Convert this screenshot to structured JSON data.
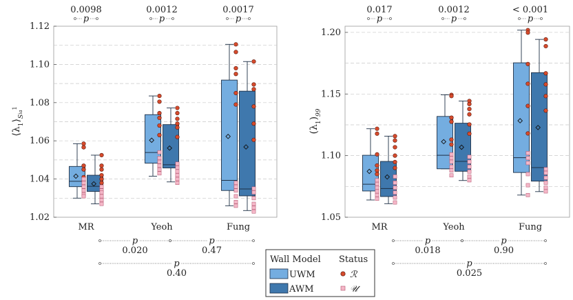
{
  "colors": {
    "uwm": "#74ade0",
    "awm": "#3f78ad",
    "box_stroke": "#1d2f45",
    "red_marker": "#d64b2c",
    "pink_marker": "#f4b7c8",
    "grid": "#c8c8c8"
  },
  "legend": {
    "wall_model_title": "Wall Model",
    "status_title": "Status",
    "uwm_label": "UWM",
    "awm_label": "AWM",
    "status_r": "ℛ",
    "status_u": "𝒰"
  },
  "chart_data": [
    {
      "type": "box",
      "ylabel": "⟨λ₁⟩_{Sᵢₐ¹}",
      "ylabel_main": "⟨λ",
      "ylabel_sub1": "1",
      "ylabel_close": "⟩",
      "ylabel_sub2": "S",
      "ylabel_sub3": "ia",
      "ylabel_sup": "1",
      "ylim": [
        1.02,
        1.12
      ],
      "ticks": [
        1.02,
        1.04,
        1.06,
        1.08,
        1.1,
        1.12
      ],
      "tick_labels": [
        "1.02",
        "1.04",
        "1.06",
        "1.08",
        "1.10",
        "1.12"
      ],
      "categories": [
        "MR",
        "Yeoh",
        "Fung"
      ],
      "series": [
        {
          "name": "UWM",
          "boxes": [
            {
              "whislo": 1.03,
              "q1": 1.036,
              "med": 1.0388,
              "q3": 1.0466,
              "whishi": 1.0585,
              "mean": 1.0415,
              "r_points": [
                1.0585,
                1.0566,
                1.047,
                1.045,
                1.041,
                1.039
              ],
              "u_points": [
                1.04,
                1.038,
                1.036,
                1.034,
                1.032,
                1.031
              ]
            },
            {
              "whislo": 1.0415,
              "q1": 1.0483,
              "med": 1.0539,
              "q3": 1.0737,
              "whishi": 1.0835,
              "mean": 1.0603,
              "r_points": [
                1.0835,
                1.0805,
                1.0745,
                1.072,
                1.068,
                1.063
              ],
              "u_points": [
                1.054,
                1.051,
                1.049,
                1.047,
                1.045,
                1.043
              ]
            },
            {
              "whislo": 1.026,
              "q1": 1.034,
              "med": 1.0393,
              "q3": 1.0918,
              "whishi": 1.1105,
              "mean": 1.0623,
              "r_points": [
                1.1105,
                1.1065,
                1.098,
                1.095,
                1.085,
                1.079
              ],
              "u_points": [
                1.038,
                1.036,
                1.034,
                1.031,
                1.028,
                1.026
              ]
            }
          ]
        },
        {
          "name": "AWM",
          "boxes": [
            {
              "whislo": 1.027,
              "q1": 1.0335,
              "med": 1.0362,
              "q3": 1.042,
              "whishi": 1.0525,
              "mean": 1.0375,
              "r_points": [
                1.0525,
                1.047,
                1.045,
                1.042,
                1.04,
                1.038
              ],
              "u_points": [
                1.036,
                1.034,
                1.033,
                1.031,
                1.029,
                1.027
              ]
            },
            {
              "whislo": 1.0385,
              "q1": 1.0458,
              "med": 1.0475,
              "q3": 1.0685,
              "whishi": 1.0772,
              "mean": 1.0562,
              "r_points": [
                1.0772,
                1.0745,
                1.0715,
                1.069,
                1.067,
                1.062
              ],
              "u_points": [
                1.048,
                1.046,
                1.044,
                1.042,
                1.04,
                1.038
              ]
            },
            {
              "whislo": 1.0235,
              "q1": 1.0312,
              "med": 1.0348,
              "q3": 1.086,
              "whishi": 1.1015,
              "mean": 1.0568,
              "r_points": [
                1.1015,
                1.0895,
                1.087,
                1.078,
                1.069,
                1.0605
              ],
              "u_points": [
                1.035,
                1.033,
                1.03,
                1.027,
                1.025,
                1.023
              ]
            }
          ]
        }
      ],
      "top_p": {
        "letter": "p",
        "values": [
          "0.0098",
          "0.0012",
          "0.0017"
        ]
      },
      "bottom_p": {
        "letter": "p",
        "first_row": [
          "0.020",
          "0.47"
        ],
        "second_row": [
          "0.40"
        ]
      }
    },
    {
      "type": "box",
      "ylabel": "(λ₁)₉₉",
      "ylabel_main": "(λ",
      "ylabel_sub1": "1",
      "ylabel_close": ")",
      "ylabel_sub2": "99",
      "ylim": [
        1.05,
        1.205
      ],
      "ticks": [
        1.05,
        1.1,
        1.15,
        1.2
      ],
      "tick_labels": [
        "1.05",
        "1.10",
        "1.15",
        "1.20"
      ],
      "categories": [
        "MR",
        "Yeoh",
        "Fung"
      ],
      "series": [
        {
          "name": "UWM",
          "boxes": [
            {
              "whislo": 1.064,
              "q1": 1.0713,
              "med": 1.0768,
              "q3": 1.1003,
              "whishi": 1.1218,
              "mean": 1.0872,
              "r_points": [
                1.1218,
                1.1178,
                1.101,
                1.092,
                1.088,
                1.085
              ],
              "u_points": [
                1.08,
                1.077,
                1.074,
                1.071,
                1.068,
                1.065
              ]
            },
            {
              "whislo": 1.0893,
              "q1": 1.0893,
              "med": 1.1003,
              "q3": 1.1318,
              "whishi": 1.1493,
              "mean": 1.1113,
              "r_points": [
                1.1493,
                1.1483,
                1.1308,
                1.1275,
                1.113,
                1.109
              ],
              "u_points": [
                1.101,
                1.098,
                1.095,
                1.091,
                1.088,
                1.084
              ]
            },
            {
              "whislo": 1.068,
              "q1": 1.0863,
              "med": 1.0983,
              "q3": 1.1753,
              "whishi": 1.2018,
              "mean": 1.1283,
              "r_points": [
                1.2018,
                1.1998,
                1.1743,
                1.1583,
                1.1403,
                1.118
              ],
              "u_points": [
                1.102,
                1.098,
                1.094,
                1.085,
                1.076,
                1.068
              ]
            }
          ]
        },
        {
          "name": "AWM",
          "boxes": [
            {
              "whislo": 1.061,
              "q1": 1.0668,
              "med": 1.0733,
              "q3": 1.0953,
              "whishi": 1.1158,
              "mean": 1.0827,
              "r_points": [
                1.1158,
                1.1123,
                1.1068,
                1.1,
                1.0948,
                1.09
              ],
              "u_points": [
                1.083,
                1.078,
                1.074,
                1.07,
                1.066,
                1.062
              ]
            },
            {
              "whislo": 1.0798,
              "q1": 1.0873,
              "med": 1.0953,
              "q3": 1.1263,
              "whishi": 1.1443,
              "mean": 1.1068,
              "r_points": [
                1.1443,
                1.1418,
                1.1378,
                1.1335,
                1.1253,
                1.1178
              ],
              "u_points": [
                1.099,
                1.095,
                1.091,
                1.087,
                1.083,
                1.08
              ]
            },
            {
              "whislo": 1.0708,
              "q1": 1.0793,
              "med": 1.0903,
              "q3": 1.1673,
              "whishi": 1.1943,
              "mean": 1.1228,
              "r_points": [
                1.1943,
                1.1888,
                1.1668,
                1.1578,
                1.1483,
                1.1365
              ],
              "u_points": [
                1.089,
                1.086,
                1.082,
                1.078,
                1.074,
                1.071
              ]
            }
          ]
        }
      ],
      "top_p": {
        "letter": "p",
        "values": [
          "0.017",
          "0.0012",
          "< 0.001"
        ]
      },
      "bottom_p": {
        "letter": "p",
        "first_row": [
          "0.018",
          "0.90"
        ],
        "second_row": [
          "0.025"
        ]
      }
    }
  ]
}
